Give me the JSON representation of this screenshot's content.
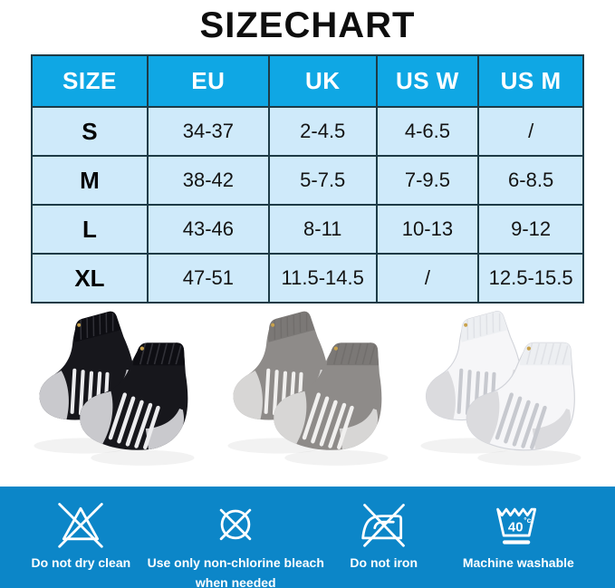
{
  "page": {
    "title": "SIZECHART"
  },
  "size_chart": {
    "columns": [
      "SIZE",
      "EU",
      "UK",
      "US W",
      "US M"
    ],
    "column_keys": [
      "size",
      "eu",
      "uk",
      "us_w",
      "us_m"
    ],
    "rows": [
      {
        "size": "S",
        "eu": "34-37",
        "uk": "2-4.5",
        "us_w": "4-6.5",
        "us_m": "/"
      },
      {
        "size": "M",
        "eu": "38-42",
        "uk": "5-7.5",
        "us_w": "7-9.5",
        "us_m": "6-8.5"
      },
      {
        "size": "L",
        "eu": "43-46",
        "uk": "8-11",
        "us_w": "10-13",
        "us_m": "9-12"
      },
      {
        "size": "XL",
        "eu": "47-51",
        "uk": "11.5-14.5",
        "us_w": "/",
        "us_m": "12.5-15.5"
      }
    ]
  },
  "products": [
    {
      "name": "black-ankle-socks",
      "color": "#17171c"
    },
    {
      "name": "grey-ankle-socks",
      "color": "#8e8b89"
    },
    {
      "name": "white-ankle-socks",
      "color": "#f6f6f8"
    }
  ],
  "care": {
    "items": [
      {
        "icon": "do-not-dry-clean-icon",
        "symbol": "icon-do-not-dry-clean",
        "label": "Do not dry clean"
      },
      {
        "icon": "non-chlorine-bleach-icon",
        "symbol": "icon-non-chlorine-bleach",
        "label": "Use only non-chlorine bleach when needed"
      },
      {
        "icon": "do-not-iron-icon",
        "symbol": "icon-do-not-iron",
        "label": "Do not iron"
      },
      {
        "icon": "machine-washable-icon",
        "symbol": "icon-machine-washable",
        "label": "Machine washable"
      }
    ],
    "wash_temperature": "40",
    "wash_temperature_unit": "°c"
  },
  "colors": {
    "header_blue": "#0fa7e4",
    "cell_blue": "#cfeafa",
    "table_border": "#1d3b46",
    "care_band_blue": "#0c86c8"
  }
}
